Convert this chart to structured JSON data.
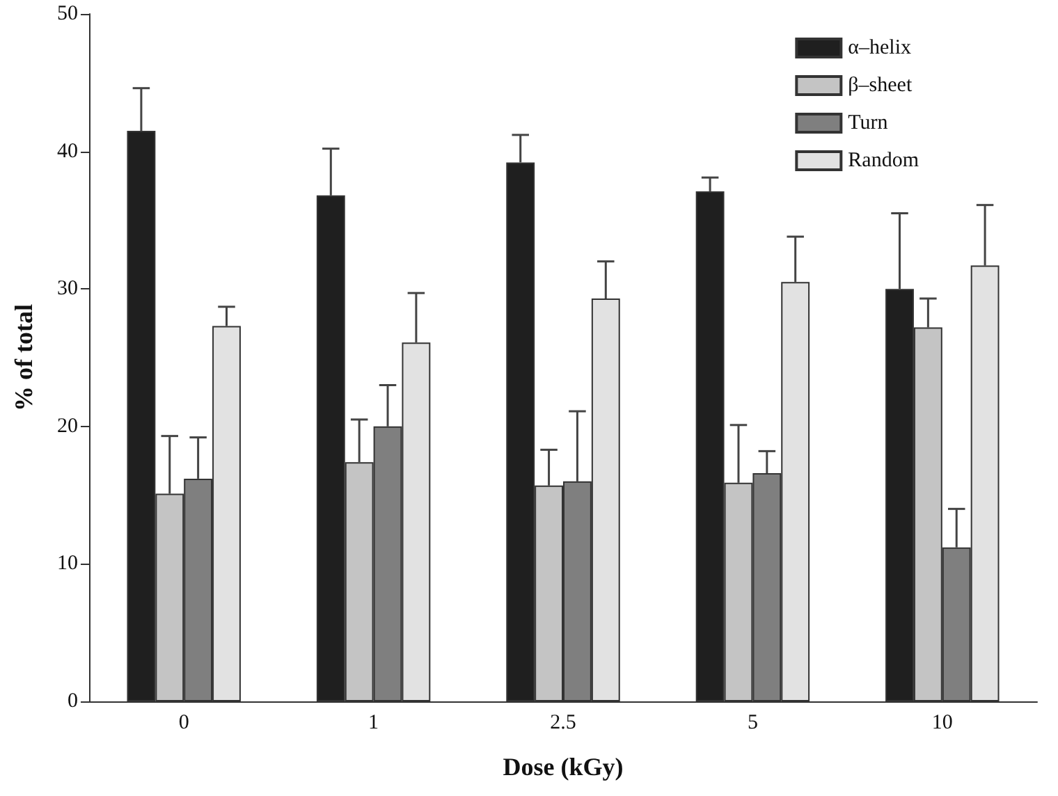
{
  "chart_data": {
    "type": "bar",
    "xlabel": "Dose (kGy)",
    "ylabel": "% of total",
    "categories": [
      "0",
      "1",
      "2.5",
      "5",
      "10"
    ],
    "series": [
      {
        "name": "α–helix",
        "color": "#1f1f1f",
        "values": [
          41.5,
          36.8,
          39.2,
          37.1,
          30.0
        ],
        "errors": [
          [
            41.5,
            44.6
          ],
          [
            36.8,
            40.2
          ],
          [
            39.2,
            41.2
          ],
          [
            37.1,
            38.1
          ],
          [
            30.0,
            35.5
          ]
        ]
      },
      {
        "name": "β–sheet",
        "color": "#c4c4c4",
        "values": [
          15.1,
          17.4,
          15.7,
          15.9,
          27.2
        ],
        "errors": [
          [
            15.1,
            19.3
          ],
          [
            17.4,
            20.5
          ],
          [
            15.7,
            18.3
          ],
          [
            15.9,
            20.1
          ],
          [
            27.2,
            29.3
          ]
        ]
      },
      {
        "name": "Turn",
        "color": "#7f7f7f",
        "values": [
          16.2,
          20.0,
          16.0,
          16.6,
          11.2
        ],
        "errors": [
          [
            16.2,
            19.2
          ],
          [
            20.0,
            23.0
          ],
          [
            16.0,
            21.1
          ],
          [
            16.6,
            18.2
          ],
          [
            11.2,
            14.0
          ]
        ]
      },
      {
        "name": "Random",
        "color": "#e2e2e2",
        "values": [
          27.3,
          26.1,
          29.3,
          30.5,
          31.7
        ],
        "errors": [
          [
            27.3,
            28.7
          ],
          [
            26.1,
            29.7
          ],
          [
            29.3,
            32.0
          ],
          [
            30.5,
            33.8
          ],
          [
            31.7,
            36.1
          ]
        ]
      }
    ],
    "ylim": [
      0,
      50
    ],
    "yticks": [
      0,
      10,
      20,
      30,
      40,
      50
    ],
    "grid": false,
    "legend": "top right"
  }
}
